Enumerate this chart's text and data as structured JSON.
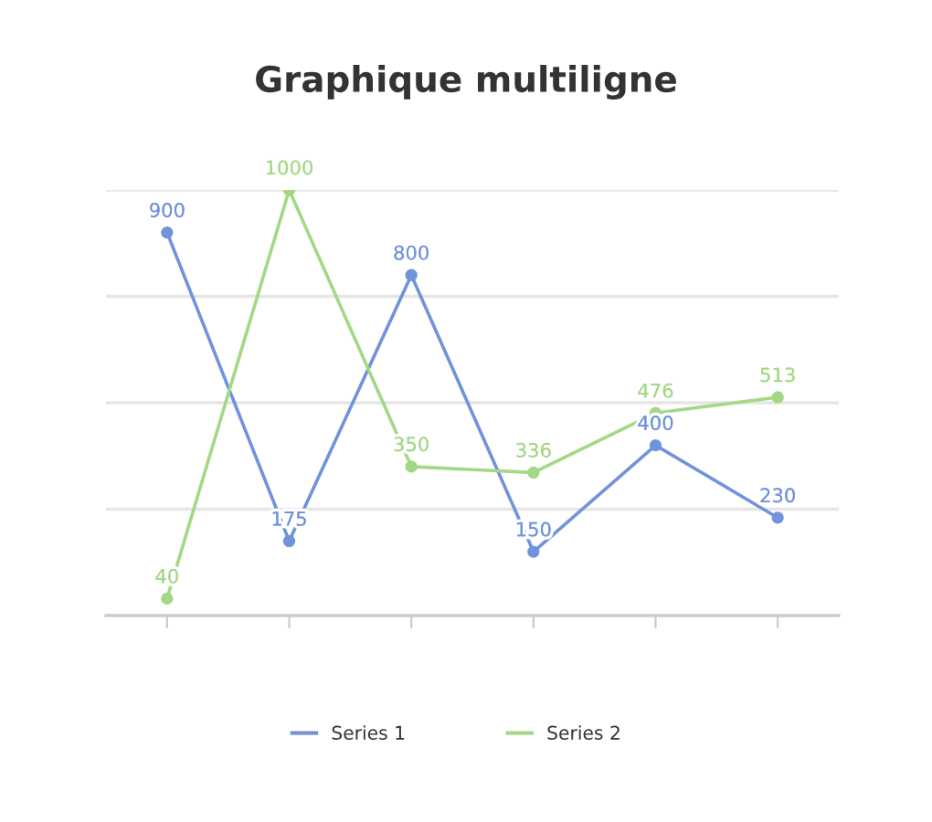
{
  "chart_data": {
    "type": "line",
    "title": "Graphique multiligne",
    "categories": [
      null,
      null,
      null,
      null,
      null,
      null
    ],
    "series": [
      {
        "name": "Series 1",
        "color": "#7193db",
        "values": [
          900,
          175,
          800,
          150,
          400,
          230
        ]
      },
      {
        "name": "Series 2",
        "color": "#a3d885",
        "values": [
          40,
          1000,
          350,
          336,
          476,
          513
        ]
      }
    ],
    "ylim": [
      0,
      1000
    ],
    "yticks": [
      {
        "value": 0,
        "label": null
      },
      {
        "value": 250,
        "label": null
      },
      {
        "value": 500,
        "label": null
      },
      {
        "value": 750,
        "label": null
      },
      {
        "value": 1000,
        "label": null
      }
    ],
    "tick_labels": false,
    "grid": "y",
    "legend": "bottom",
    "marker": "circle",
    "line_style": "solid",
    "data_labels": true
  }
}
